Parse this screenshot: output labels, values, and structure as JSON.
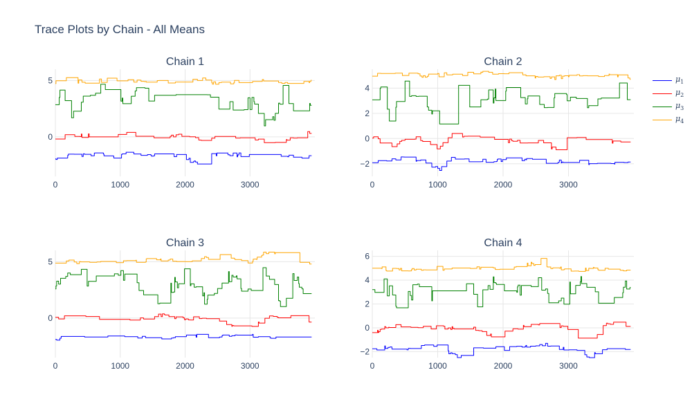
{
  "title": "Trace Plots by Chain - All Means",
  "colors": {
    "mu1": "#0000ff",
    "mu2": "#ff0000",
    "mu3": "#008000",
    "mu4": "#ffa500",
    "grid": "#e6e6e6",
    "text": "#2a3f5f"
  },
  "legend": [
    {
      "symbol": "μ",
      "sub": "1",
      "color": "#0000ff"
    },
    {
      "symbol": "μ",
      "sub": "2",
      "color": "#ff0000"
    },
    {
      "symbol": "μ",
      "sub": "3",
      "color": "#008000"
    },
    {
      "symbol": "μ",
      "sub": "4",
      "color": "#ffa500"
    }
  ],
  "chart_data": [
    {
      "type": "line",
      "title": "Chain 1",
      "xlim": [
        0,
        4000
      ],
      "ylim": [
        -3.5,
        6
      ],
      "xticks": [
        0,
        1000,
        2000,
        3000
      ],
      "yticks": [
        0,
        5
      ],
      "series": [
        {
          "name": "μ1",
          "segments": [
            [
              0,
              -2
            ],
            [
              120,
              -1.6
            ],
            [
              300,
              -1.6
            ],
            [
              600,
              -1.5
            ],
            [
              900,
              -1.7
            ],
            [
              1100,
              -1.5
            ],
            [
              1400,
              -1.6
            ],
            [
              1900,
              -1.7
            ],
            [
              2300,
              -2.6
            ],
            [
              2400,
              -1.6
            ],
            [
              3000,
              -1.6
            ],
            [
              3300,
              -1.5
            ],
            [
              3700,
              -1.7
            ],
            [
              4000,
              -1.9
            ]
          ]
        },
        {
          "name": "μ2",
          "segments": [
            [
              0,
              -0.2
            ],
            [
              120,
              0.2
            ],
            [
              400,
              0.1
            ],
            [
              800,
              0.3
            ],
            [
              1100,
              0.4
            ],
            [
              1400,
              0
            ],
            [
              1900,
              0.2
            ],
            [
              2000,
              0.1
            ],
            [
              2300,
              -0.5
            ],
            [
              2400,
              0
            ],
            [
              3000,
              0
            ],
            [
              3300,
              -0.6
            ],
            [
              3700,
              -0.1
            ],
            [
              3900,
              0.5
            ],
            [
              4000,
              0
            ]
          ]
        },
        {
          "name": "μ3",
          "segments": [
            [
              0,
              3
            ],
            [
              100,
              4.5
            ],
            [
              200,
              2
            ],
            [
              400,
              3.5
            ],
            [
              600,
              3.5
            ],
            [
              800,
              4.5
            ],
            [
              1000,
              3.5
            ],
            [
              1300,
              4
            ],
            [
              1700,
              3
            ],
            [
              2000,
              4
            ],
            [
              2300,
              4.5
            ],
            [
              2400,
              3
            ],
            [
              3000,
              3
            ],
            [
              3300,
              1
            ],
            [
              3500,
              4
            ],
            [
              3700,
              1.5
            ],
            [
              3900,
              3
            ],
            [
              4000,
              3.1
            ]
          ]
        },
        {
          "name": "μ4",
          "segments": [
            [
              0,
              4.8
            ],
            [
              120,
              5.7
            ],
            [
              250,
              4.9
            ],
            [
              600,
              4.9
            ],
            [
              900,
              5.1
            ],
            [
              1300,
              4.9
            ],
            [
              2000,
              4.9
            ],
            [
              2300,
              5.2
            ],
            [
              2400,
              4.8
            ],
            [
              3300,
              5
            ],
            [
              3700,
              4.8
            ],
            [
              4000,
              4.9
            ]
          ]
        }
      ]
    },
    {
      "type": "line",
      "title": "Chain 2",
      "xlim": [
        0,
        4000
      ],
      "ylim": [
        -3,
        5.5
      ],
      "xticks": [
        0,
        1000,
        2000,
        3000
      ],
      "yticks": [
        -2,
        0,
        2,
        4
      ],
      "series": [
        {
          "name": "μ1",
          "segments": [
            [
              0,
              -2
            ],
            [
              300,
              -1.6
            ],
            [
              800,
              -1.7
            ],
            [
              1000,
              -2.5
            ],
            [
              1200,
              -1.6
            ],
            [
              1600,
              -1.8
            ],
            [
              2000,
              -1.7
            ],
            [
              2500,
              -1.7
            ],
            [
              2700,
              -1.9
            ],
            [
              3000,
              -1.8
            ],
            [
              3500,
              -2
            ],
            [
              4000,
              -1.8
            ]
          ]
        },
        {
          "name": "μ2",
          "segments": [
            [
              0,
              0
            ],
            [
              300,
              -0.5
            ],
            [
              600,
              0.2
            ],
            [
              1000,
              -0.8
            ],
            [
              1200,
              0.5
            ],
            [
              1600,
              0
            ],
            [
              2000,
              -0.2
            ],
            [
              2500,
              -0.2
            ],
            [
              2800,
              -0.8
            ],
            [
              3000,
              0
            ],
            [
              3500,
              -0.3
            ],
            [
              4000,
              -0.2
            ]
          ]
        },
        {
          "name": "μ3",
          "segments": [
            [
              0,
              3.1
            ],
            [
              100,
              4
            ],
            [
              300,
              1.5
            ],
            [
              500,
              4
            ],
            [
              800,
              3.2
            ],
            [
              1000,
              1
            ],
            [
              1200,
              4.5
            ],
            [
              1500,
              3
            ],
            [
              2000,
              3.6
            ],
            [
              2500,
              2.5
            ],
            [
              3000,
              3.5
            ],
            [
              3300,
              2
            ],
            [
              3600,
              3.5
            ],
            [
              3800,
              4.3
            ],
            [
              4000,
              1.9
            ]
          ]
        },
        {
          "name": "μ4",
          "segments": [
            [
              0,
              5
            ],
            [
              200,
              5.2
            ],
            [
              600,
              5
            ],
            [
              1000,
              5
            ],
            [
              1500,
              5.2
            ],
            [
              2000,
              5.1
            ],
            [
              2600,
              4.8
            ],
            [
              3000,
              4.9
            ],
            [
              3500,
              5
            ],
            [
              4000,
              4.8
            ]
          ]
        }
      ]
    },
    {
      "type": "line",
      "title": "Chain 3",
      "xlim": [
        0,
        4000
      ],
      "ylim": [
        -3.5,
        6
      ],
      "xticks": [
        0,
        1000,
        2000,
        3000
      ],
      "yticks": [
        0,
        5
      ],
      "series": [
        {
          "name": "μ1",
          "segments": [
            [
              0,
              -2
            ],
            [
              200,
              -1.5
            ],
            [
              600,
              -1.7
            ],
            [
              1000,
              -1.6
            ],
            [
              1400,
              -1.8
            ],
            [
              2000,
              -1.6
            ],
            [
              2600,
              -1.6
            ],
            [
              3000,
              -1.5
            ],
            [
              3500,
              -1.8
            ],
            [
              3900,
              -2.9
            ],
            [
              4000,
              -1.8
            ]
          ]
        },
        {
          "name": "μ2",
          "segments": [
            [
              0,
              0
            ],
            [
              200,
              0.2
            ],
            [
              700,
              0
            ],
            [
              1000,
              -0.5
            ],
            [
              1500,
              0.3
            ],
            [
              2000,
              0
            ],
            [
              2500,
              -0.2
            ],
            [
              3000,
              -1
            ],
            [
              3200,
              0
            ],
            [
              3600,
              0.3
            ],
            [
              4000,
              -0.5
            ]
          ]
        },
        {
          "name": "μ3",
          "segments": [
            [
              0,
              2.5
            ],
            [
              200,
              4
            ],
            [
              500,
              3.5
            ],
            [
              900,
              4
            ],
            [
              1300,
              3
            ],
            [
              1600,
              1.5
            ],
            [
              2000,
              4
            ],
            [
              2300,
              1.5
            ],
            [
              2600,
              4
            ],
            [
              3000,
              2
            ],
            [
              3200,
              4.5
            ],
            [
              3500,
              1
            ],
            [
              3700,
              4
            ],
            [
              3900,
              1.5
            ],
            [
              4000,
              1.5
            ]
          ]
        },
        {
          "name": "μ4",
          "segments": [
            [
              0,
              4.9
            ],
            [
              300,
              5
            ],
            [
              700,
              5
            ],
            [
              1000,
              5.1
            ],
            [
              1600,
              5.1
            ],
            [
              2000,
              5
            ],
            [
              2500,
              5.5
            ],
            [
              3000,
              5
            ],
            [
              3300,
              6
            ],
            [
              3600,
              4.8
            ],
            [
              4000,
              4.8
            ]
          ]
        }
      ]
    },
    {
      "type": "line",
      "title": "Chain 4",
      "xlim": [
        0,
        4000
      ],
      "ylim": [
        -2.5,
        6.5
      ],
      "xticks": [
        0,
        1000,
        2000,
        3000
      ],
      "yticks": [
        -2,
        0,
        2,
        4,
        6
      ],
      "series": [
        {
          "name": "μ1",
          "segments": [
            [
              0,
              -1.9
            ],
            [
              200,
              -1.6
            ],
            [
              600,
              -1.7
            ],
            [
              1000,
              -1.5
            ],
            [
              1300,
              -2.5
            ],
            [
              1500,
              -1.6
            ],
            [
              2000,
              -1.8
            ],
            [
              2600,
              -1.4
            ],
            [
              3000,
              -1.8
            ],
            [
              3300,
              -2.4
            ],
            [
              3600,
              -1.7
            ],
            [
              4000,
              -1.8
            ]
          ]
        },
        {
          "name": "μ2",
          "segments": [
            [
              0,
              -0.5
            ],
            [
              300,
              0.2
            ],
            [
              700,
              0
            ],
            [
              1000,
              0
            ],
            [
              1500,
              0
            ],
            [
              1900,
              -0.8
            ],
            [
              2200,
              0
            ],
            [
              2500,
              0.3
            ],
            [
              3000,
              0
            ],
            [
              3300,
              -1.5
            ],
            [
              3600,
              0.5
            ],
            [
              4000,
              0
            ]
          ]
        },
        {
          "name": "μ3",
          "segments": [
            [
              0,
              3
            ],
            [
              150,
              4
            ],
            [
              400,
              2
            ],
            [
              700,
              3.5
            ],
            [
              1000,
              2.5
            ],
            [
              1300,
              3.8
            ],
            [
              1600,
              2.3
            ],
            [
              1900,
              4
            ],
            [
              2200,
              3
            ],
            [
              2500,
              4.5
            ],
            [
              2800,
              1.5
            ],
            [
              3100,
              4
            ],
            [
              3500,
              2.5
            ],
            [
              3900,
              3.5
            ],
            [
              4000,
              2.5
            ]
          ]
        },
        {
          "name": "μ4",
          "segments": [
            [
              0,
              5
            ],
            [
              300,
              4.9
            ],
            [
              700,
              4.8
            ],
            [
              1000,
              5
            ],
            [
              1400,
              5
            ],
            [
              1800,
              5
            ],
            [
              2200,
              5.2
            ],
            [
              2500,
              5.4
            ],
            [
              2600,
              5.8
            ],
            [
              2700,
              5
            ],
            [
              3000,
              4.9
            ],
            [
              3500,
              4.9
            ],
            [
              4000,
              4.8
            ]
          ]
        }
      ]
    }
  ]
}
